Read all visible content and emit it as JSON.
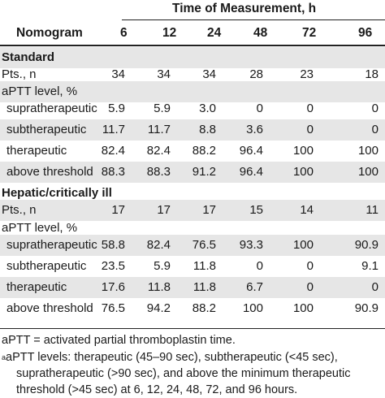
{
  "header": {
    "super_title": "Time of Measurement, h",
    "nomogram": "Nomogram",
    "times": [
      "6",
      "12",
      "24",
      "48",
      "72",
      "96"
    ]
  },
  "sections": [
    {
      "title": "Standard",
      "pts_label": "Pts., n",
      "pts": [
        "34",
        "34",
        "34",
        "28",
        "23",
        "18"
      ],
      "level_label": "aPTT level, %",
      "rows": [
        {
          "label": "supratherapeutic",
          "values": [
            "5.9",
            "5.9",
            "3.0",
            "0",
            "0",
            "0"
          ]
        },
        {
          "label": "subtherapeutic",
          "values": [
            "11.7",
            "11.7",
            "8.8",
            "3.6",
            "0",
            "0"
          ]
        },
        {
          "label": "therapeutic",
          "values": [
            "82.4",
            "82.4",
            "88.2",
            "96.4",
            "100",
            "100"
          ]
        },
        {
          "label": "above threshold",
          "values": [
            "88.3",
            "88.3",
            "91.2",
            "96.4",
            "100",
            "100"
          ]
        }
      ]
    },
    {
      "title": "Hepatic/critically ill",
      "pts_label": "Pts., n",
      "pts": [
        "17",
        "17",
        "17",
        "15",
        "14",
        "11"
      ],
      "level_label": "aPTT level, %",
      "rows": [
        {
          "label": "supratherapeutic",
          "values": [
            "58.8",
            "82.4",
            "76.5",
            "93.3",
            "100",
            "90.9"
          ]
        },
        {
          "label": "subtherapeutic",
          "values": [
            "23.5",
            "5.9",
            "11.8",
            "0",
            "0",
            "9.1"
          ]
        },
        {
          "label": "therapeutic",
          "values": [
            "17.6",
            "11.8",
            "11.8",
            "6.7",
            "0",
            "0"
          ]
        },
        {
          "label": "above threshold",
          "values": [
            "76.5",
            "94.2",
            "88.2",
            "100",
            "100",
            "90.9"
          ]
        }
      ]
    }
  ],
  "footnotes": {
    "abbrev": "aPTT = activated partial thromboplastin time.",
    "note_mark": "a",
    "note_line1": "aPTT levels: therapeutic (45–90 sec), subtherapeutic (<45 sec),",
    "note_line2": "supratherapeutic (>90 sec), and above the minimum therapeutic",
    "note_line3": "threshold (>45 sec) at 6, 12, 24, 48, 72, and 96 hours."
  }
}
